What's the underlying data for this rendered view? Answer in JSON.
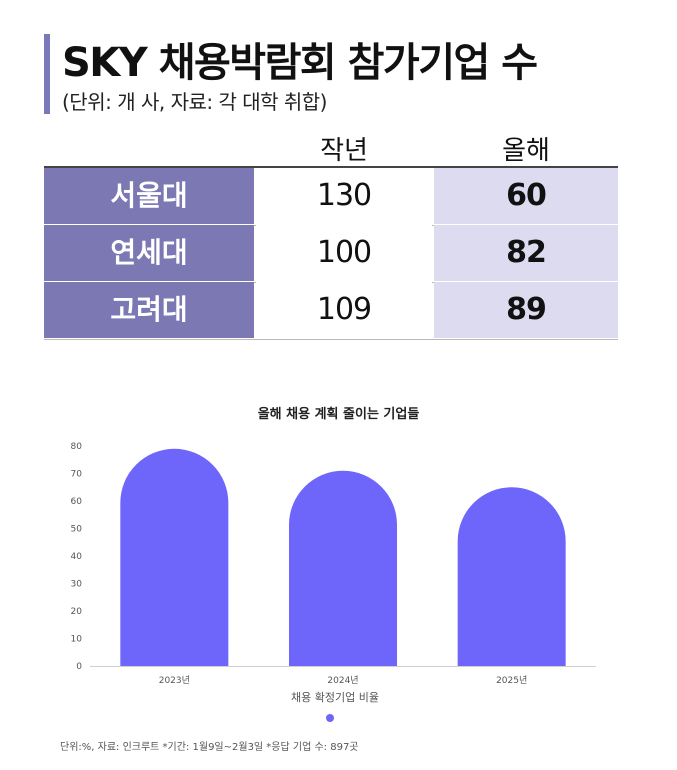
{
  "header": {
    "title": "SKY 채용박람회 참가기업 수",
    "subtitle": "(단위: 개 사, 자료: 각 대학 취합)"
  },
  "table": {
    "columns": [
      "작년",
      "올해"
    ],
    "rows": [
      {
        "name": "서울대",
        "prev": "130",
        "cur": "60"
      },
      {
        "name": "연세대",
        "prev": "100",
        "cur": "82"
      },
      {
        "name": "고려대",
        "prev": "109",
        "cur": "89"
      }
    ]
  },
  "chart_data": {
    "type": "bar",
    "title": "올해 채용 계획 줄이는 기업들",
    "categories": [
      "2023년",
      "2024년",
      "2025년"
    ],
    "values": [
      79,
      71,
      65
    ],
    "xlabel": "",
    "ylabel": "",
    "ylim": [
      0,
      80
    ],
    "yticks": [
      0,
      10,
      20,
      30,
      40,
      50,
      60,
      70,
      80
    ],
    "series": [
      {
        "name": "채용 확정기업 비율",
        "values": [
          79,
          71,
          65
        ]
      }
    ],
    "legend": "bottom",
    "grid": false,
    "bar_color": "#6e66fb"
  },
  "source_note": "단위:%, 자료: 인크루트 *기간: 1월9일~2월3일 *응답 기업 수: 897곳"
}
